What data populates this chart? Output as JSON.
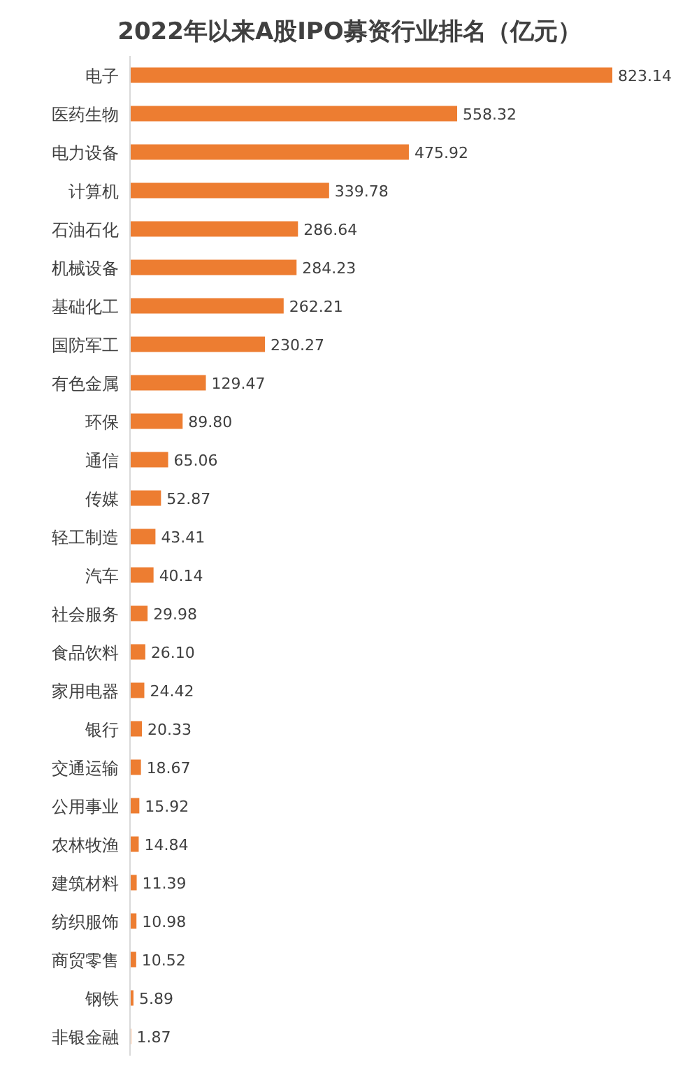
{
  "chart_data": {
    "type": "bar",
    "orientation": "horizontal",
    "title": "2022年以来A股IPO募资行业排名（亿元）",
    "categories": [
      "电子",
      "医药生物",
      "电力设备",
      "计算机",
      "石油石化",
      "机械设备",
      "基础化工",
      "国防军工",
      "有色金属",
      "环保",
      "通信",
      "传媒",
      "轻工制造",
      "汽车",
      "社会服务",
      "食品饮料",
      "家用电器",
      "银行",
      "交通运输",
      "公用事业",
      "农林牧渔",
      "建筑材料",
      "纺织服饰",
      "商贸零售",
      "钢铁",
      "非银金融"
    ],
    "values": [
      823.14,
      558.32,
      475.92,
      339.78,
      286.64,
      284.23,
      262.21,
      230.27,
      129.47,
      89.8,
      65.06,
      52.87,
      43.41,
      40.14,
      29.98,
      26.1,
      24.42,
      20.33,
      18.67,
      15.92,
      14.84,
      11.39,
      10.98,
      10.52,
      5.89,
      1.87
    ],
    "value_labels": [
      "823.14",
      "558.32",
      "475.92",
      "339.78",
      "286.64",
      "284.23",
      "262.21",
      "230.27",
      "129.47",
      "89.80",
      "65.06",
      "52.87",
      "43.41",
      "40.14",
      "29.98",
      "26.10",
      "24.42",
      "20.33",
      "18.67",
      "15.92",
      "14.84",
      "11.39",
      "10.98",
      "10.52",
      "5.89",
      "1.87"
    ],
    "color": "#ed7d31"
  }
}
